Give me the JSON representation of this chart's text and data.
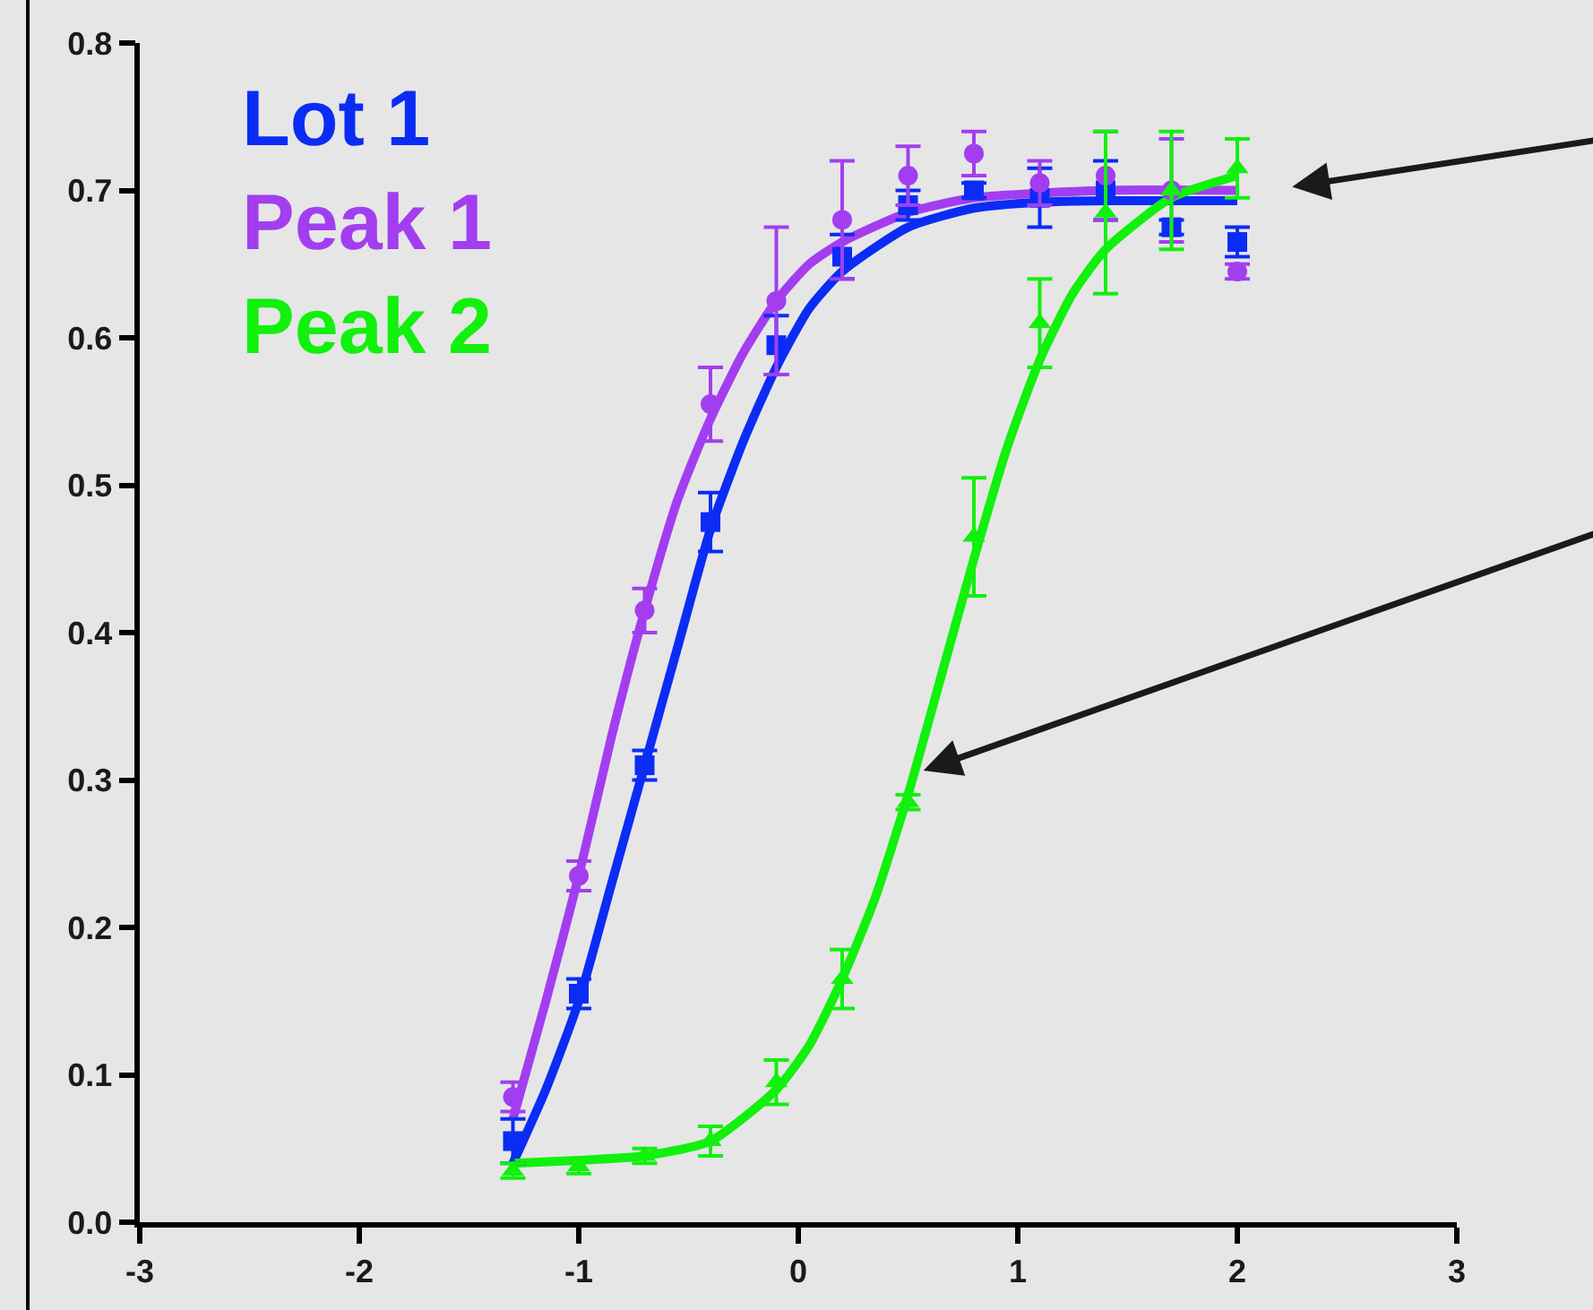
{
  "chart_data": {
    "type": "scatter",
    "xlim": [
      -3,
      3
    ],
    "xticks": [
      -3,
      -2,
      -1,
      0,
      1,
      2,
      3
    ],
    "ylim": [
      0,
      0.8
    ],
    "yticks": [
      {
        "value": 0,
        "label": "0.0"
      },
      0.1,
      0.2,
      0.3,
      0.4,
      0.5,
      0.6,
      0.7,
      0.8
    ],
    "grid": false,
    "series": [
      {
        "type": "line",
        "color": "#0a2cf5",
        "x": [
          -1.3,
          -1.15,
          -1.0,
          -0.85,
          -0.7,
          -0.55,
          -0.4,
          -0.25,
          -0.1,
          0.05,
          0.2,
          0.5,
          0.8,
          1.1,
          1.4,
          2.0
        ],
        "values": [
          0.04,
          0.09,
          0.15,
          0.23,
          0.31,
          0.39,
          0.47,
          0.53,
          0.58,
          0.62,
          0.645,
          0.675,
          0.688,
          0.692,
          0.693,
          0.693
        ]
      },
      {
        "type": "line",
        "color": "#a23ef0",
        "x": [
          -1.3,
          -1.15,
          -1.0,
          -0.85,
          -0.7,
          -0.55,
          -0.4,
          -0.25,
          -0.1,
          0.05,
          0.2,
          0.5,
          0.8,
          1.4,
          2.0
        ],
        "values": [
          0.07,
          0.15,
          0.235,
          0.33,
          0.415,
          0.49,
          0.545,
          0.59,
          0.625,
          0.65,
          0.665,
          0.685,
          0.695,
          0.7,
          0.7
        ]
      },
      {
        "type": "line",
        "color": "#12f00e",
        "x": [
          -1.3,
          -1.0,
          -0.7,
          -0.4,
          -0.1,
          0.05,
          0.2,
          0.35,
          0.5,
          0.65,
          0.8,
          0.95,
          1.1,
          1.25,
          1.4,
          1.7,
          2.0
        ],
        "values": [
          0.04,
          0.042,
          0.045,
          0.055,
          0.09,
          0.12,
          0.165,
          0.22,
          0.29,
          0.37,
          0.45,
          0.525,
          0.585,
          0.63,
          0.66,
          0.695,
          0.71
        ]
      },
      {
        "name": "Lot 1",
        "marker": "square",
        "color": "#0a2cf5",
        "x": [
          -1.3,
          -1.0,
          -0.7,
          -0.4,
          -0.1,
          0.2,
          0.5,
          0.8,
          1.1,
          1.4,
          1.7,
          2.0
        ],
        "values": [
          0.055,
          0.155,
          0.31,
          0.475,
          0.595,
          0.655,
          0.69,
          0.7,
          0.695,
          0.7,
          0.675,
          0.665
        ],
        "errors": [
          0.015,
          0.01,
          0.01,
          0.02,
          0.02,
          0.015,
          0.01,
          0.005,
          0.02,
          0.02,
          0.005,
          0.01
        ]
      },
      {
        "name": "Peak 1",
        "marker": "circle",
        "color": "#a23ef0",
        "x": [
          -1.3,
          -1.0,
          -0.7,
          -0.4,
          -0.1,
          0.2,
          0.5,
          0.8,
          1.1,
          1.4,
          1.7,
          2.0
        ],
        "values": [
          0.085,
          0.235,
          0.415,
          0.555,
          0.625,
          0.68,
          0.71,
          0.725,
          0.705,
          0.71,
          0.7,
          0.645
        ],
        "errors": [
          0.01,
          0.01,
          0.015,
          0.025,
          0.05,
          0.04,
          0.02,
          0.015,
          0.015,
          0.03,
          0.035,
          0.005
        ]
      },
      {
        "name": "Peak 2",
        "marker": "triangle",
        "color": "#12f00e",
        "x": [
          -1.3,
          -1.0,
          -0.7,
          -0.4,
          -0.1,
          0.2,
          0.5,
          0.8,
          1.1,
          1.4,
          1.7,
          2.0
        ],
        "values": [
          0.035,
          0.038,
          0.045,
          0.055,
          0.095,
          0.165,
          0.285,
          0.465,
          0.61,
          0.685,
          0.7,
          0.715
        ],
        "errors": [
          0.005,
          0.005,
          0.005,
          0.01,
          0.015,
          0.02,
          0.005,
          0.04,
          0.03,
          0.055,
          0.04,
          0.02
        ]
      }
    ]
  }
}
